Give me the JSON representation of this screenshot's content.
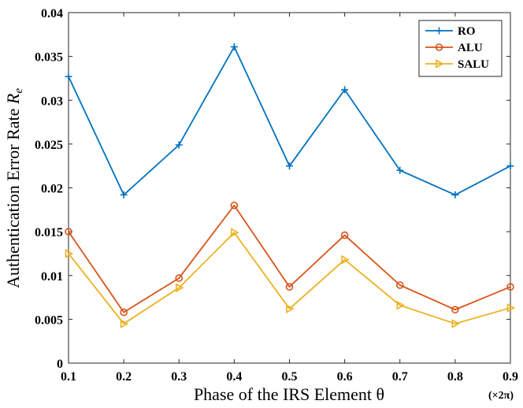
{
  "chart_data": {
    "type": "line",
    "title": "",
    "xlabel": "Phase of the IRS Element θ",
    "x_unit_note": "(×2π)",
    "ylabel": "Authentication Error Rate",
    "ylabel_symbol": "R",
    "ylabel_subscript": "e",
    "xlim": [
      0.1,
      0.9
    ],
    "ylim": [
      0,
      0.04
    ],
    "x_ticks": [
      "0.1",
      "0.2",
      "0.3",
      "0.4",
      "0.5",
      "0.6",
      "0.7",
      "0.8",
      "0.9"
    ],
    "y_ticks": [
      "0",
      "0.005",
      "0.01",
      "0.015",
      "0.02",
      "0.025",
      "0.03",
      "0.035",
      "0.04"
    ],
    "x": [
      0.1,
      0.2,
      0.3,
      0.4,
      0.5,
      0.6,
      0.7,
      0.8,
      0.9
    ],
    "grid": false,
    "legend_position": "top-right",
    "series": [
      {
        "name": "RO",
        "marker": "plus",
        "color": "#0072BD",
        "values": [
          0.0327,
          0.0192,
          0.0249,
          0.0361,
          0.0225,
          0.0312,
          0.022,
          0.0192,
          0.0225
        ]
      },
      {
        "name": "ALU",
        "marker": "circle",
        "color": "#D95319",
        "values": [
          0.015,
          0.0058,
          0.0097,
          0.018,
          0.0087,
          0.0146,
          0.0089,
          0.0061,
          0.0087
        ]
      },
      {
        "name": "SALU",
        "marker": "triangle-right",
        "color": "#EDB120",
        "values": [
          0.0125,
          0.0045,
          0.0086,
          0.0149,
          0.0062,
          0.0118,
          0.0066,
          0.0045,
          0.0063
        ]
      }
    ]
  }
}
